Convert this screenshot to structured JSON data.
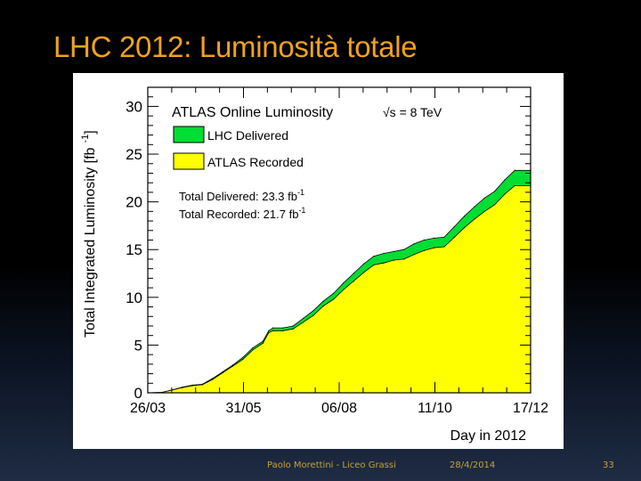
{
  "slide": {
    "title": "LHC 2012: Luminosità totale",
    "footer_author": "Paolo Morettini - Liceo Grassi",
    "footer_date": "28/4/2014",
    "page_number": "33"
  },
  "colors": {
    "title": "#f0a21e",
    "delivered": "#00dd33",
    "recorded": "#ffff00",
    "footer": "#c9a23a"
  },
  "chart_data": {
    "type": "area",
    "title": "ATLAS Online Luminosity",
    "energy_label": "√s = 8 TeV",
    "xlabel": "Day in 2012",
    "ylabel": "Total Integrated Luminosity [fb",
    "ylabel_superscript": "-1",
    "ylabel_close": "]",
    "xlim": [
      "2012-03-26",
      "2012-12-17"
    ],
    "ylim": [
      0,
      32
    ],
    "x_ticks": [
      "26/03",
      "31/05",
      "06/08",
      "11/10",
      "17/12"
    ],
    "y_ticks": [
      "0",
      "5",
      "10",
      "15",
      "20",
      "25",
      "30"
    ],
    "grid": false,
    "legend_position": "top-left",
    "summary_delivered": "Total Delivered: 23.3 fb",
    "summary_recorded": "Total Recorded: 21.7 fb",
    "summary_unit_superscript": "-1",
    "series": [
      {
        "name": "LHC Delivered",
        "color": "#00dd33",
        "points": [
          [
            "2012-03-26",
            0
          ],
          [
            "2012-04-05",
            0.05
          ],
          [
            "2012-04-12",
            0.3
          ],
          [
            "2012-04-19",
            0.6
          ],
          [
            "2012-04-26",
            0.8
          ],
          [
            "2012-05-03",
            0.9
          ],
          [
            "2012-05-10",
            1.5
          ],
          [
            "2012-05-17",
            2.2
          ],
          [
            "2012-05-24",
            2.9
          ],
          [
            "2012-05-31",
            3.7
          ],
          [
            "2012-06-07",
            4.7
          ],
          [
            "2012-06-14",
            5.4
          ],
          [
            "2012-06-18",
            6.5
          ],
          [
            "2012-06-21",
            6.8
          ],
          [
            "2012-06-28",
            6.8
          ],
          [
            "2012-07-05",
            7.0
          ],
          [
            "2012-07-12",
            7.8
          ],
          [
            "2012-07-19",
            8.6
          ],
          [
            "2012-07-26",
            9.6
          ],
          [
            "2012-08-02",
            10.4
          ],
          [
            "2012-08-09",
            11.5
          ],
          [
            "2012-08-16",
            12.5
          ],
          [
            "2012-08-23",
            13.5
          ],
          [
            "2012-08-30",
            14.3
          ],
          [
            "2012-09-06",
            14.6
          ],
          [
            "2012-09-13",
            14.8
          ],
          [
            "2012-09-20",
            15.0
          ],
          [
            "2012-09-27",
            15.6
          ],
          [
            "2012-10-04",
            16.0
          ],
          [
            "2012-10-11",
            16.2
          ],
          [
            "2012-10-18",
            16.3
          ],
          [
            "2012-10-25",
            17.4
          ],
          [
            "2012-11-01",
            18.5
          ],
          [
            "2012-11-08",
            19.5
          ],
          [
            "2012-11-15",
            20.4
          ],
          [
            "2012-11-22",
            21.1
          ],
          [
            "2012-11-29",
            22.3
          ],
          [
            "2012-12-06",
            23.3
          ],
          [
            "2012-12-17",
            23.3
          ]
        ]
      },
      {
        "name": "ATLAS Recorded",
        "color": "#ffff00",
        "points": [
          [
            "2012-03-26",
            0
          ],
          [
            "2012-04-05",
            0.05
          ],
          [
            "2012-04-12",
            0.3
          ],
          [
            "2012-04-19",
            0.55
          ],
          [
            "2012-04-26",
            0.75
          ],
          [
            "2012-05-03",
            0.85
          ],
          [
            "2012-05-10",
            1.4
          ],
          [
            "2012-05-17",
            2.1
          ],
          [
            "2012-05-24",
            2.8
          ],
          [
            "2012-05-31",
            3.5
          ],
          [
            "2012-06-07",
            4.5
          ],
          [
            "2012-06-14",
            5.2
          ],
          [
            "2012-06-18",
            6.3
          ],
          [
            "2012-06-21",
            6.5
          ],
          [
            "2012-06-28",
            6.5
          ],
          [
            "2012-07-05",
            6.7
          ],
          [
            "2012-07-12",
            7.4
          ],
          [
            "2012-07-19",
            8.1
          ],
          [
            "2012-07-26",
            9.1
          ],
          [
            "2012-08-02",
            9.8
          ],
          [
            "2012-08-09",
            10.8
          ],
          [
            "2012-08-16",
            11.7
          ],
          [
            "2012-08-23",
            12.6
          ],
          [
            "2012-08-30",
            13.4
          ],
          [
            "2012-09-06",
            13.6
          ],
          [
            "2012-09-13",
            13.9
          ],
          [
            "2012-09-20",
            14.0
          ],
          [
            "2012-09-27",
            14.5
          ],
          [
            "2012-10-04",
            14.9
          ],
          [
            "2012-10-11",
            15.2
          ],
          [
            "2012-10-18",
            15.3
          ],
          [
            "2012-10-25",
            16.3
          ],
          [
            "2012-11-01",
            17.3
          ],
          [
            "2012-11-08",
            18.2
          ],
          [
            "2012-11-15",
            19.0
          ],
          [
            "2012-11-22",
            19.7
          ],
          [
            "2012-11-29",
            20.8
          ],
          [
            "2012-12-06",
            21.7
          ],
          [
            "2012-12-17",
            21.7
          ]
        ]
      }
    ]
  }
}
